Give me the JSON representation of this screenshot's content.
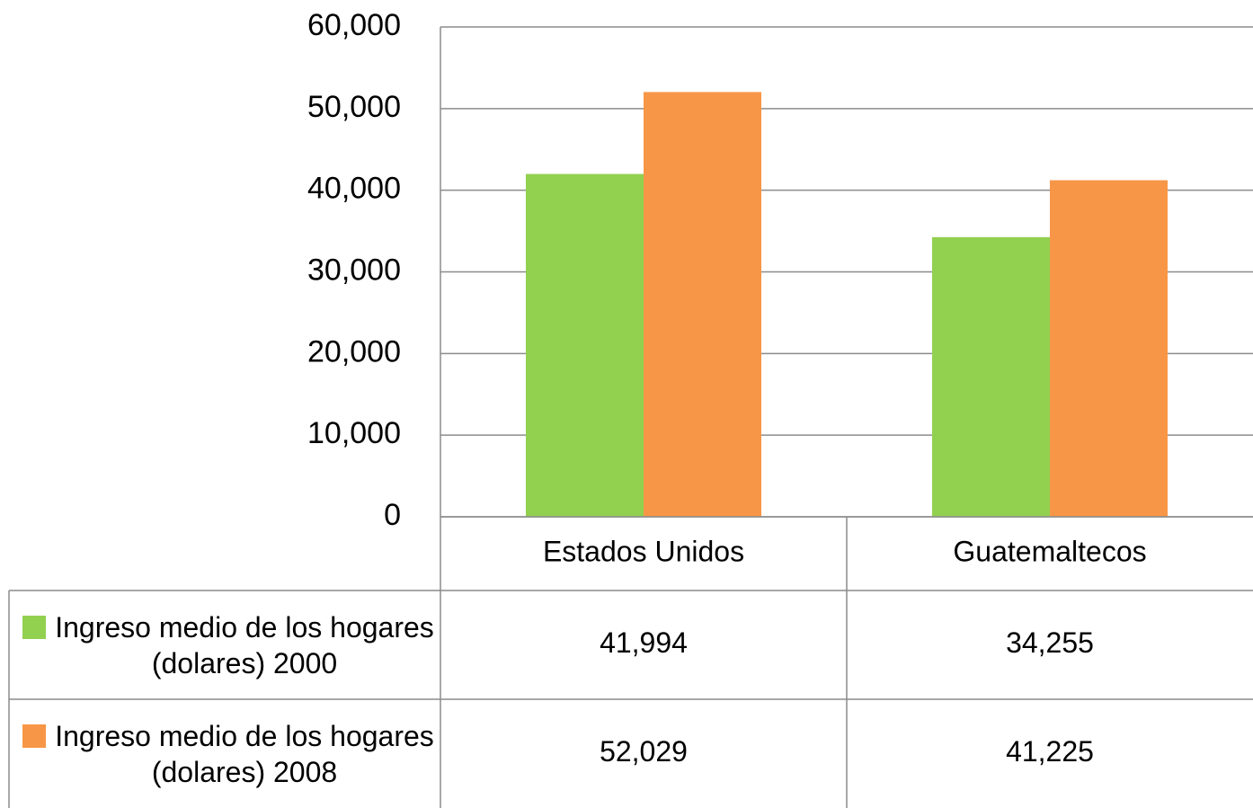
{
  "chart_data": {
    "type": "bar",
    "categories": [
      "Estados Unidos",
      "Guatemaltecos"
    ],
    "series": [
      {
        "name": "Ingreso medio de los hogares (dolares) 2000",
        "color": "#92d050",
        "values": [
          41994,
          34255
        ],
        "value_labels": [
          "41,994",
          "34,255"
        ]
      },
      {
        "name": "Ingreso medio de los hogares (dolares) 2008",
        "color": "#f79646",
        "values": [
          52029,
          41225
        ],
        "value_labels": [
          "52,029",
          "41,225"
        ]
      }
    ],
    "ylim": [
      0,
      60000
    ],
    "yticks": [
      0,
      {
        "value": 10000,
        "label": "10,000"
      },
      {
        "value": 20000,
        "label": "20,000"
      },
      {
        "value": 30000,
        "label": "30,000"
      },
      {
        "value": 40000,
        "label": "40,000"
      },
      {
        "value": 50000,
        "label": "50,000"
      },
      {
        "value": 60000,
        "label": "60,000"
      }
    ],
    "grid": true
  }
}
